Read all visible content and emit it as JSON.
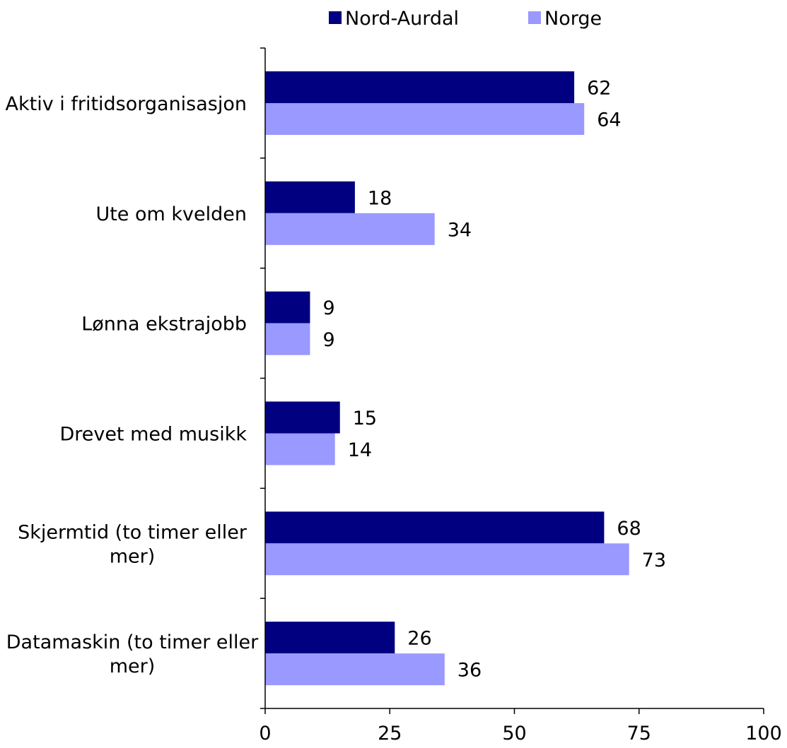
{
  "chart_data": {
    "type": "bar",
    "orientation": "horizontal",
    "categories": [
      [
        "Aktiv i fritidsorganisasjon"
      ],
      [
        "Ute om kvelden"
      ],
      [
        "Lønna ekstrajobb"
      ],
      [
        "Drevet med musikk"
      ],
      [
        "Skjermtid (to timer eller",
        "mer)"
      ],
      [
        "Datamaskin (to timer eller",
        "mer)"
      ]
    ],
    "series": [
      {
        "name": "Nord-Aurdal",
        "color": "#000080",
        "values": [
          62,
          18,
          9,
          15,
          68,
          26
        ]
      },
      {
        "name": "Norge",
        "color": "#9999FF",
        "values": [
          64,
          34,
          9,
          14,
          73,
          36
        ]
      }
    ],
    "xlim": [
      0,
      100
    ],
    "xticks": [
      0,
      25,
      50,
      75,
      100
    ],
    "grid": false,
    "legend_position": "top"
  }
}
